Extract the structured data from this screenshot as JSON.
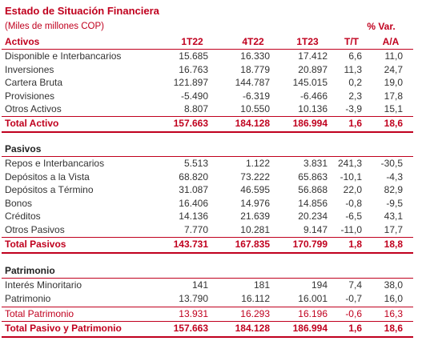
{
  "title": "Estado de Situación Financiera",
  "subtitle": "(Miles de millones COP)",
  "var_header": "% Var.",
  "columns": [
    "1T22",
    "4T22",
    "1T23",
    "T/T",
    "A/A"
  ],
  "activos": {
    "heading": "Activos",
    "rows": [
      {
        "label": "Disponible e Interbancarios",
        "v": [
          "15.685",
          "16.330",
          "17.412",
          "6,6",
          "11,0"
        ]
      },
      {
        "label": "Inversiones",
        "v": [
          "16.763",
          "18.779",
          "20.897",
          "11,3",
          "24,7"
        ]
      },
      {
        "label": "Cartera Bruta",
        "v": [
          "121.897",
          "144.787",
          "145.015",
          "0,2",
          "19,0"
        ]
      },
      {
        "label": "Provisiones",
        "v": [
          "-5.490",
          "-6.319",
          "-6.466",
          "2,3",
          "17,8"
        ]
      },
      {
        "label": "Otros Activos",
        "v": [
          "8.807",
          "10.550",
          "10.136",
          "-3,9",
          "15,1"
        ]
      }
    ],
    "total": {
      "label": "Total Activo",
      "v": [
        "157.663",
        "184.128",
        "186.994",
        "1,6",
        "18,6"
      ]
    }
  },
  "pasivos": {
    "heading": "Pasivos",
    "rows": [
      {
        "label": "Repos e Interbancarios",
        "v": [
          "5.513",
          "1.122",
          "3.831",
          "241,3",
          "-30,5"
        ]
      },
      {
        "label": "Depósitos a la Vista",
        "v": [
          "68.820",
          "73.222",
          "65.863",
          "-10,1",
          "-4,3"
        ]
      },
      {
        "label": "Depósitos a Término",
        "v": [
          "31.087",
          "46.595",
          "56.868",
          "22,0",
          "82,9"
        ]
      },
      {
        "label": "Bonos",
        "v": [
          "16.406",
          "14.976",
          "14.856",
          "-0,8",
          "-9,5"
        ]
      },
      {
        "label": "Créditos",
        "v": [
          "14.136",
          "21.639",
          "20.234",
          "-6,5",
          "43,1"
        ]
      },
      {
        "label": "Otros Pasivos",
        "v": [
          "7.770",
          "10.281",
          "9.147",
          "-11,0",
          "17,7"
        ]
      }
    ],
    "total": {
      "label": "Total Pasivos",
      "v": [
        "143.731",
        "167.835",
        "170.799",
        "1,8",
        "18,8"
      ]
    }
  },
  "patrimonio": {
    "heading": "Patrimonio",
    "rows": [
      {
        "label": "Interés Minoritario",
        "v": [
          "141",
          "181",
          "194",
          "7,4",
          "38,0"
        ]
      },
      {
        "label": "Patrimonio",
        "v": [
          "13.790",
          "16.112",
          "16.001",
          "-0,7",
          "16,0"
        ]
      }
    ],
    "subtotal": {
      "label": "Total Patrimonio",
      "v": [
        "13.931",
        "16.293",
        "16.196",
        "-0,6",
        "16,3"
      ]
    },
    "total": {
      "label": "Total Pasivo y Patrimonio",
      "v": [
        "157.663",
        "184.128",
        "186.994",
        "1,6",
        "18,6"
      ]
    }
  },
  "colors": {
    "accent": "#c0001e",
    "text": "#333333"
  }
}
